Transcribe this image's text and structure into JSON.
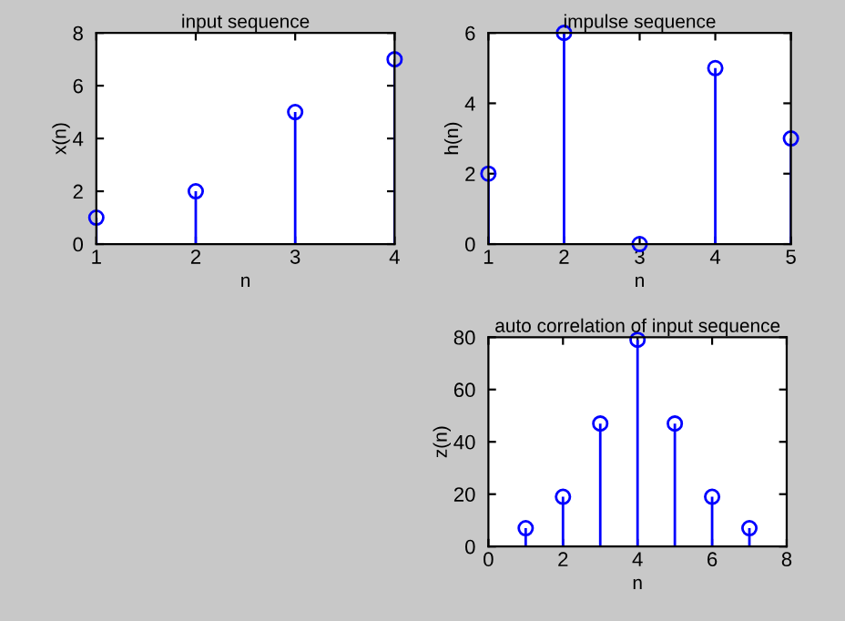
{
  "chart_data": [
    {
      "type": "lollipop",
      "title": "input sequence",
      "xlabel": "n",
      "ylabel": "x(n)",
      "x": [
        1,
        2,
        3,
        4
      ],
      "series": [
        {
          "color": "#0000ff",
          "values": [
            1,
            2,
            5,
            7
          ]
        }
      ],
      "xlim": [
        1,
        4
      ],
      "ylim": [
        0,
        8
      ],
      "xticks": [
        1,
        2,
        3,
        4
      ],
      "yticks": [
        0,
        2,
        4,
        6,
        8
      ],
      "marker": "circle"
    },
    {
      "type": "lollipop",
      "title": "impulse sequence",
      "xlabel": "n",
      "ylabel": "h(n)",
      "x": [
        1,
        2,
        3,
        4,
        5
      ],
      "series": [
        {
          "color": "#0000ff",
          "values": [
            2,
            6,
            0,
            5,
            3
          ]
        }
      ],
      "xlim": [
        1,
        5
      ],
      "ylim": [
        0,
        6
      ],
      "xticks": [
        1,
        2,
        3,
        4,
        5
      ],
      "yticks": [
        0,
        2,
        4,
        6
      ],
      "marker": "circle"
    },
    {
      "type": "lollipop",
      "title": "auto correlation of input sequence",
      "xlabel": "n",
      "ylabel": "z(n)",
      "x": [
        1,
        2,
        3,
        4,
        5,
        6,
        7
      ],
      "series": [
        {
          "color": "#0000ff",
          "values": [
            7,
            19,
            47,
            79,
            47,
            19,
            7
          ]
        }
      ],
      "xlim": [
        0,
        8
      ],
      "ylim": [
        0,
        80
      ],
      "xticks": [
        0,
        2,
        4,
        6,
        8
      ],
      "yticks": [
        0,
        20,
        40,
        60,
        80
      ],
      "marker": "circle"
    }
  ]
}
